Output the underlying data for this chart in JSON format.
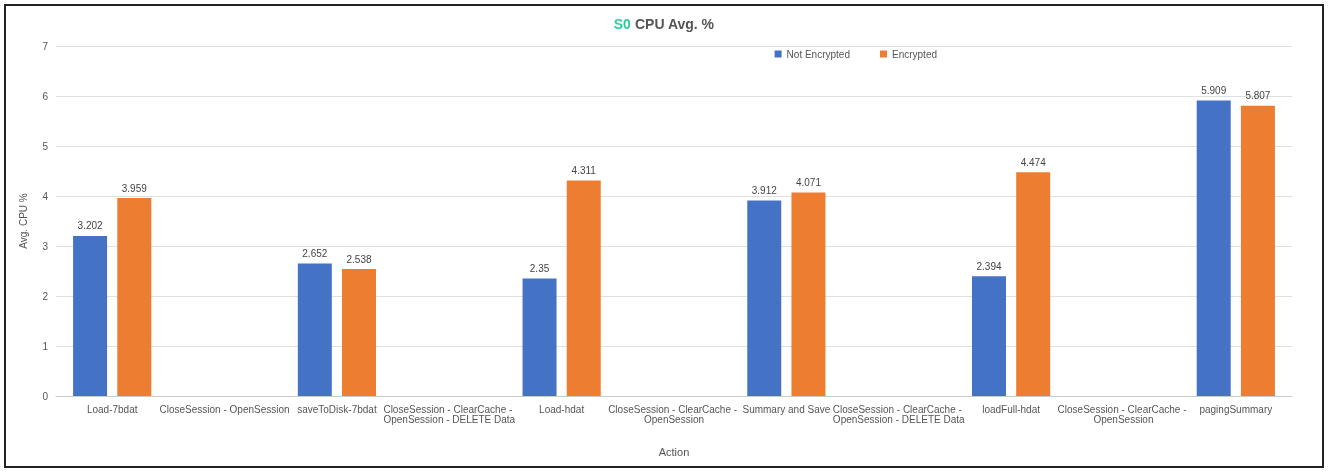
{
  "chart_data": {
    "type": "bar",
    "title": "S0 CPU Avg. %",
    "xlabel": "Action",
    "ylabel": "Avg. CPU %",
    "categories": [
      "Load-7bdat",
      "CloseSession - OpenSession",
      "saveToDisk-7bdat",
      "CloseSession - ClearCache - OpenSession - DELETE Data",
      "Load-hdat",
      "CloseSession - ClearCache - OpenSession",
      "Summary and Save",
      "CloseSession - ClearCache - OpenSession - DELETE Data",
      "loadFull-hdat",
      "CloseSession - ClearCache - OpenSession",
      "pagingSummary"
    ],
    "series": [
      {
        "name": "Not Encrypted",
        "color": "#4472c4",
        "values": [
          3.202,
          null,
          2.652,
          null,
          2.35,
          null,
          3.912,
          null,
          2.394,
          null,
          5.909
        ]
      },
      {
        "name": "Encrypted",
        "color": "#ed7d31",
        "values": [
          3.959,
          null,
          2.538,
          null,
          4.311,
          null,
          4.071,
          null,
          4.474,
          null,
          5.807
        ]
      }
    ],
    "ylim": [
      0,
      7
    ],
    "yticks": [
      0,
      1,
      2,
      3,
      4,
      5,
      6,
      7
    ],
    "grid": "y",
    "legend": "top right",
    "data_labels": true
  }
}
